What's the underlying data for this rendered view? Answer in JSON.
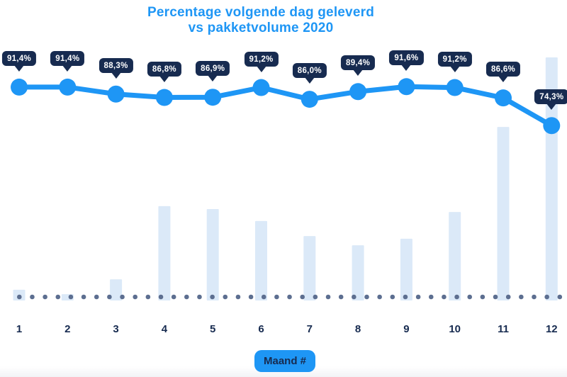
{
  "ui": {
    "title_line1": "Percentage volgende dag geleverd",
    "title_line2": "vs pakketvolume 2020",
    "x_axis_badge": "Maand #"
  },
  "colors": {
    "accent_blue": "#1E96F5",
    "navy": "#172B50",
    "bar_fill": "#DBE9F8",
    "dot_gray": "#5C6E90"
  },
  "chart_data": {
    "type": "combo",
    "title": "Percentage volgende dag geleverd vs pakketvolume 2020",
    "categories": [
      "1",
      "2",
      "3",
      "4",
      "5",
      "6",
      "7",
      "8",
      "9",
      "10",
      "11",
      "12"
    ],
    "xlabel": "Maand #",
    "legend": "none",
    "grid": false,
    "baseline_style": "dotted",
    "series": [
      {
        "name": "Percentage volgende dag geleverd",
        "type": "line",
        "unit": "%",
        "values": [
          91.4,
          91.4,
          88.3,
          86.8,
          86.9,
          91.2,
          86.0,
          89.4,
          91.6,
          91.2,
          86.6,
          74.3
        ],
        "point_labels": [
          "91,4%",
          "91,4%",
          "88,3%",
          "86,8%",
          "86,9%",
          "91,2%",
          "86,0%",
          "89,4%",
          "91,6%",
          "91,2%",
          "86,6%",
          "74,3%"
        ]
      },
      {
        "name": "Pakketvolume 2020",
        "type": "bar",
        "value_axis_labels_visible": false,
        "values_relative_max100": [
          4.4,
          2.6,
          8.7,
          38.8,
          37.6,
          32.7,
          26.5,
          22.7,
          25.4,
          36.4,
          71.4,
          100
        ]
      }
    ]
  }
}
